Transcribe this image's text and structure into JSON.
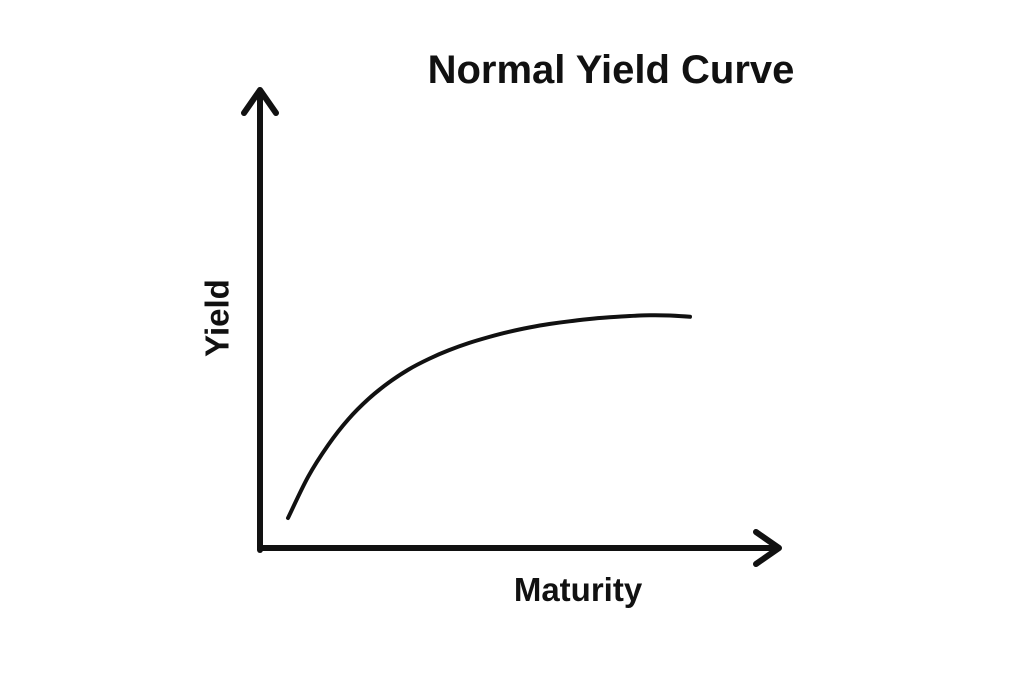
{
  "chart_data": {
    "type": "line",
    "title": "Normal Yield Curve",
    "xlabel": "Maturity",
    "ylabel": "Yield",
    "xlim": [
      0,
      100
    ],
    "ylim": [
      0,
      100
    ],
    "grid": false,
    "x_ticks_shown": false,
    "y_ticks_shown": false,
    "axes_style": "arrows",
    "series": [
      {
        "x": [
          0,
          5,
          10,
          15,
          20,
          25,
          30,
          35,
          40,
          45,
          50,
          55,
          60,
          65,
          70,
          75,
          80,
          85,
          90,
          95,
          100
        ],
        "y": [
          12,
          28.5,
          41.2,
          51.5,
          59.6,
          66.1,
          71.4,
          75.6,
          79.1,
          82,
          84.4,
          86.5,
          88.2,
          89.6,
          90.7,
          91.6,
          92.3,
          92.8,
          93.1,
          93,
          92.5
        ],
        "color": "#111111"
      }
    ]
  }
}
